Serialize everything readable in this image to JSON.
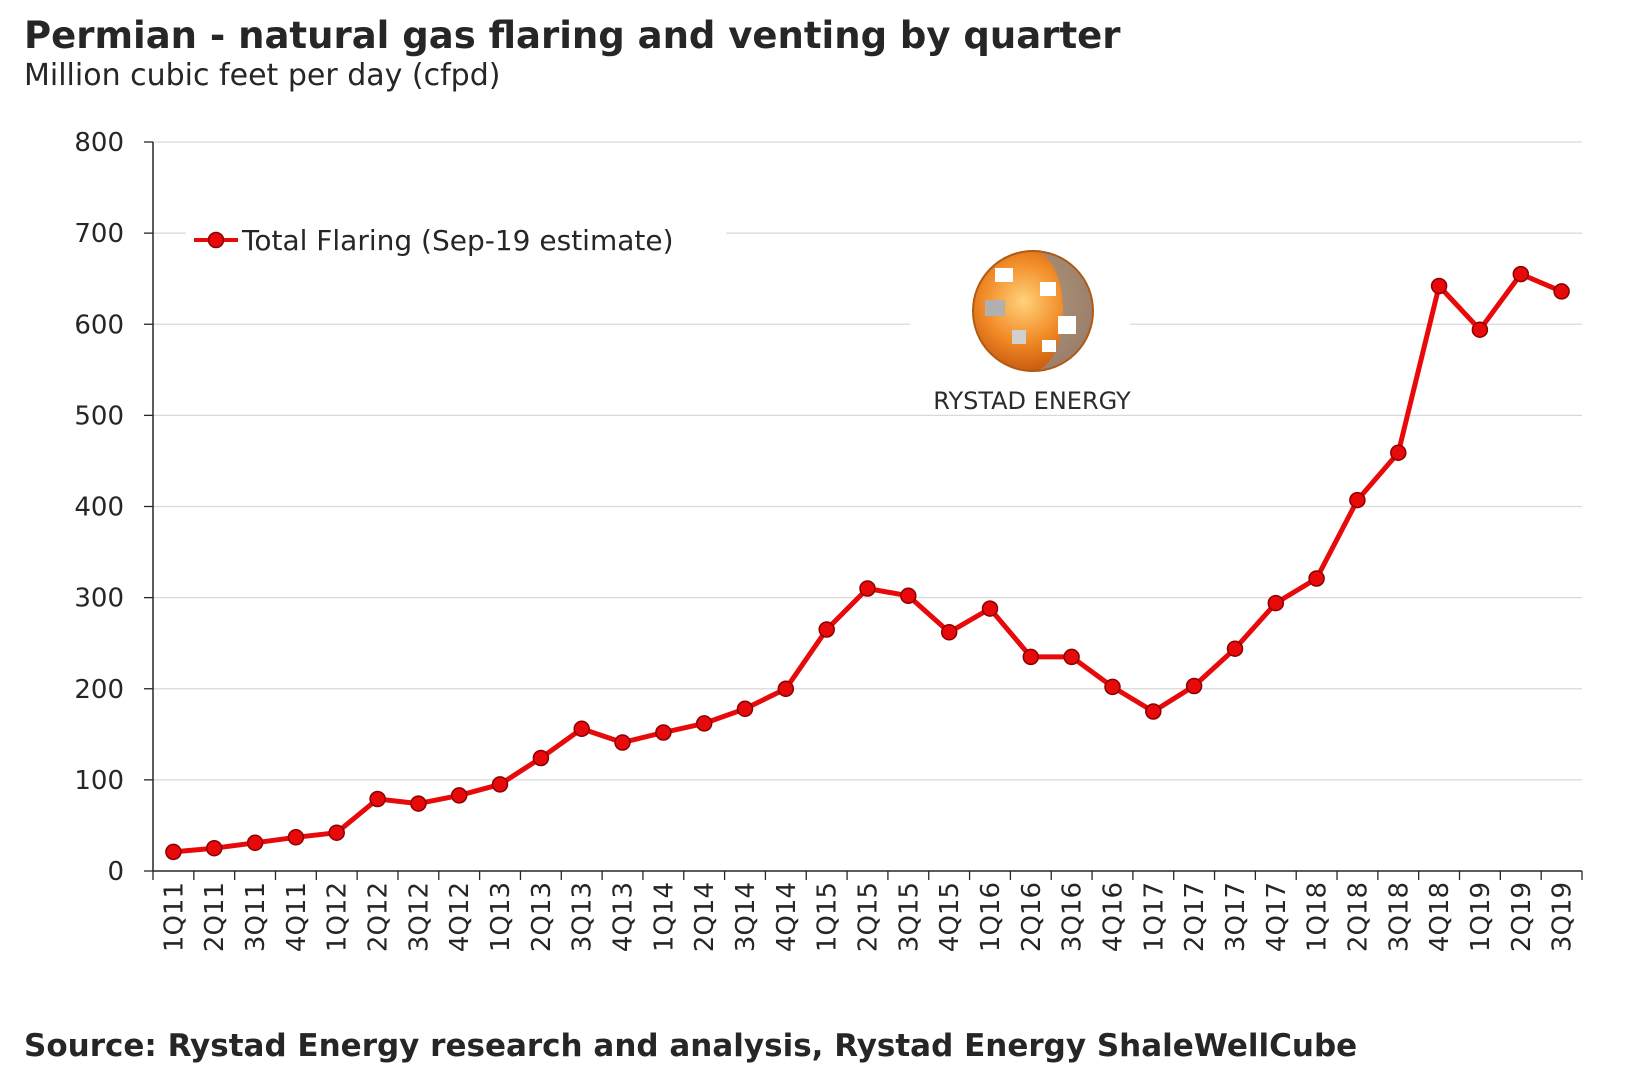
{
  "title": "Permian - natural gas flaring and venting by quarter",
  "subtitle": "Million cubic feet per day (cfpd)",
  "source": "Source: Rystad Energy research and analysis, Rystad Energy ShaleWellCube",
  "logo": {
    "name": "RYSTAD ENERGY",
    "icon": "rystad-globe-logo"
  },
  "colors": {
    "series": "#e8090b",
    "marker_stroke": "#8b0000",
    "gridline": "#d9d9d9",
    "axis": "#262626",
    "text": "#262626",
    "logo_orange": "#f28c28",
    "logo_gray": "#9a9a9a"
  },
  "chart_data": {
    "type": "line",
    "title": "Permian - natural gas flaring and venting by quarter",
    "subtitle": "Million cubic feet per day (cfpd)",
    "xlabel": "",
    "ylabel": "",
    "ylim": [
      0,
      800
    ],
    "yticks": [
      0,
      100,
      200,
      300,
      400,
      500,
      600,
      700,
      800
    ],
    "grid": true,
    "legend_position": "top-left",
    "categories": [
      "1Q11",
      "2Q11",
      "3Q11",
      "4Q11",
      "1Q12",
      "2Q12",
      "3Q12",
      "4Q12",
      "1Q13",
      "2Q13",
      "3Q13",
      "4Q13",
      "1Q14",
      "2Q14",
      "3Q14",
      "4Q14",
      "1Q15",
      "2Q15",
      "3Q15",
      "4Q15",
      "1Q16",
      "2Q16",
      "3Q16",
      "4Q16",
      "1Q17",
      "2Q17",
      "3Q17",
      "4Q17",
      "1Q18",
      "2Q18",
      "3Q18",
      "4Q18",
      "1Q19",
      "2Q19",
      "3Q19"
    ],
    "series": [
      {
        "name": "Total Flaring (Sep-19 estimate)",
        "values": [
          21,
          25,
          31,
          37,
          42,
          79,
          74,
          83,
          95,
          124,
          156,
          141,
          152,
          162,
          178,
          200,
          265,
          310,
          302,
          262,
          288,
          235,
          235,
          202,
          175,
          203,
          244,
          294,
          321,
          407,
          459,
          642,
          594,
          655,
          636
        ]
      }
    ]
  }
}
